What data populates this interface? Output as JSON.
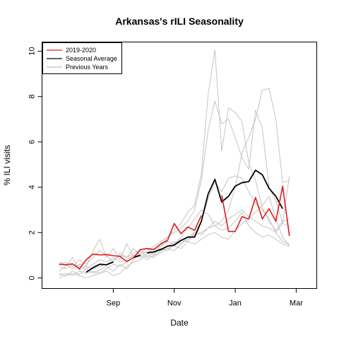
{
  "chart_data": {
    "type": "line",
    "title": "Arkansas's rILI Seasonality",
    "xlabel": "Date",
    "ylabel": "% ILI visits",
    "ylim": [
      0,
      10
    ],
    "yticks": [
      "0",
      "2",
      "4",
      "6",
      "8",
      "10"
    ],
    "xticks": [
      {
        "label": "Sep",
        "week": 10
      },
      {
        "label": "Nov",
        "week": 19
      },
      {
        "label": "Jan",
        "week": 28
      },
      {
        "label": "Mar",
        "week": 37
      }
    ],
    "xlim": [
      1,
      38
    ],
    "legend": {
      "position": "top-left",
      "entries": [
        "2019-2020",
        "Seasonal Average",
        "Previous Years"
      ]
    },
    "colors": {
      "current": "#e31a1c",
      "average": "#000000",
      "previous": "#bebebe"
    },
    "series": [
      {
        "name": "2019-2020",
        "role": "current",
        "points": [
          [
            2,
            0.6
          ],
          [
            3,
            0.58
          ],
          [
            4,
            0.62
          ],
          [
            5,
            0.4
          ],
          [
            6,
            0.8
          ],
          [
            7,
            1.05
          ],
          [
            8,
            1.02
          ],
          [
            9,
            1.03
          ],
          [
            10,
            0.98
          ],
          [
            11,
            0.95
          ],
          [
            12,
            0.72
          ],
          [
            13,
            0.9
          ],
          [
            14,
            1.25
          ],
          [
            15,
            1.3
          ],
          [
            16,
            1.25
          ],
          [
            17,
            1.5
          ],
          [
            18,
            1.65
          ],
          [
            19,
            2.4
          ],
          [
            20,
            1.95
          ],
          [
            21,
            2.25
          ],
          [
            22,
            2.1
          ],
          [
            23,
            2.75
          ],
          null,
          [
            26,
            3.65
          ],
          [
            27,
            2.05
          ],
          [
            28,
            2.05
          ],
          [
            29,
            2.7
          ],
          [
            30,
            2.6
          ],
          [
            31,
            3.55
          ],
          [
            32,
            2.6
          ],
          [
            33,
            3.05
          ],
          [
            34,
            2.5
          ],
          [
            35,
            4.05
          ],
          [
            36,
            1.85
          ]
        ]
      },
      {
        "name": "Seasonal Average",
        "role": "average",
        "points": [
          [
            6,
            0.25
          ],
          [
            7,
            0.45
          ],
          [
            8,
            0.6
          ],
          [
            9,
            0.58
          ],
          [
            10,
            0.7
          ],
          null,
          [
            13,
            0.9
          ],
          [
            14,
            1.0
          ],
          null,
          [
            15,
            1.1
          ],
          [
            16,
            1.15
          ],
          [
            17,
            1.25
          ],
          [
            18,
            1.4
          ],
          [
            19,
            1.45
          ],
          [
            20,
            1.65
          ],
          [
            21,
            1.8
          ],
          [
            22,
            1.8
          ],
          [
            23,
            2.5
          ],
          [
            24,
            3.7
          ],
          [
            25,
            4.35
          ],
          [
            26,
            3.35
          ],
          [
            27,
            3.6
          ],
          [
            28,
            4.05
          ],
          [
            29,
            4.2
          ],
          [
            30,
            4.25
          ],
          [
            31,
            4.75
          ],
          [
            32,
            4.55
          ],
          [
            33,
            3.95
          ],
          [
            34,
            3.6
          ],
          [
            35,
            3.05
          ]
        ]
      },
      {
        "role": "previous",
        "points": [
          [
            2,
            0.3
          ],
          [
            3,
            0.5
          ],
          [
            4,
            0.9
          ],
          [
            5,
            0.35
          ],
          [
            6,
            0.5
          ],
          [
            7,
            1.2
          ],
          [
            8,
            1.7
          ],
          [
            9,
            0.9
          ],
          [
            10,
            1.3
          ],
          [
            11,
            0.8
          ],
          [
            12,
            1.5
          ],
          [
            13,
            0.9
          ],
          [
            14,
            1.1
          ],
          [
            15,
            1.3
          ],
          [
            16,
            1.0
          ],
          [
            17,
            1.4
          ],
          [
            18,
            1.8
          ],
          [
            19,
            2.1
          ],
          [
            20,
            2.4
          ],
          [
            21,
            2.9
          ],
          [
            22,
            3.2
          ],
          [
            23,
            4.6
          ],
          [
            24,
            8.1
          ],
          [
            25,
            10.05
          ],
          [
            26,
            5.6
          ],
          [
            27,
            7.5
          ],
          [
            28,
            7.3
          ],
          [
            29,
            6.9
          ],
          [
            30,
            5.1
          ],
          [
            31,
            4.3
          ],
          [
            32,
            3.1
          ],
          [
            33,
            2.5
          ],
          [
            34,
            2.1
          ],
          [
            35,
            2.5
          ],
          [
            36,
            2.6
          ]
        ]
      },
      {
        "role": "previous",
        "points": [
          [
            2,
            0.6
          ],
          [
            3,
            0.7
          ],
          [
            4,
            0.5
          ],
          [
            5,
            0.8
          ],
          [
            6,
            0.6
          ],
          [
            7,
            0.9
          ],
          [
            8,
            1.2
          ],
          [
            9,
            1.0
          ],
          [
            10,
            0.7
          ],
          [
            11,
            1.1
          ],
          [
            12,
            0.9
          ],
          [
            13,
            1.3
          ],
          [
            14,
            1.0
          ],
          [
            15,
            1.2
          ],
          [
            16,
            1.4
          ],
          [
            17,
            1.6
          ],
          [
            18,
            1.8
          ],
          [
            19,
            2.0
          ],
          [
            20,
            2.2
          ],
          [
            21,
            2.5
          ],
          [
            22,
            3.0
          ],
          [
            23,
            4.3
          ],
          [
            24,
            6.5
          ],
          [
            25,
            7.8
          ],
          [
            26,
            6.8
          ],
          [
            27,
            7.0
          ],
          [
            28,
            6.2
          ],
          [
            29,
            5.3
          ],
          [
            30,
            4.8
          ],
          [
            31,
            7.4
          ],
          [
            32,
            6.6
          ],
          [
            33,
            4.0
          ],
          [
            34,
            3.4
          ],
          [
            35,
            2.4
          ],
          [
            36,
            4.5
          ]
        ]
      },
      {
        "role": "previous",
        "points": [
          [
            2,
            0.2
          ],
          [
            3,
            0.1
          ],
          [
            4,
            0.3
          ],
          [
            5,
            0.15
          ],
          [
            6,
            0.4
          ],
          [
            7,
            0.2
          ],
          [
            8,
            0.35
          ],
          [
            9,
            0.5
          ],
          [
            10,
            0.3
          ],
          [
            11,
            0.6
          ],
          [
            12,
            0.4
          ],
          [
            13,
            0.8
          ],
          [
            14,
            1.2
          ],
          [
            15,
            0.9
          ],
          [
            16,
            1.1
          ],
          [
            17,
            1.3
          ],
          [
            18,
            1.2
          ],
          [
            19,
            1.5
          ],
          [
            20,
            1.7
          ],
          [
            21,
            1.6
          ],
          [
            22,
            2.0
          ],
          [
            23,
            1.9
          ],
          [
            24,
            2.2
          ],
          [
            25,
            2.3
          ],
          [
            26,
            2.5
          ],
          [
            27,
            3.0
          ],
          [
            28,
            4.0
          ],
          [
            29,
            5.5
          ],
          [
            30,
            6.2
          ],
          [
            31,
            7.0
          ],
          [
            32,
            8.3
          ],
          [
            33,
            8.35
          ],
          [
            34,
            7.0
          ],
          [
            35,
            4.2
          ],
          [
            36,
            4.3
          ]
        ]
      },
      {
        "role": "previous",
        "points": [
          [
            2,
            0.1
          ],
          [
            3,
            0.2
          ],
          [
            4,
            0.1
          ],
          [
            5,
            0.3
          ],
          [
            6,
            0.2
          ],
          [
            7,
            0.3
          ],
          [
            8,
            0.2
          ],
          [
            9,
            0.4
          ],
          [
            10,
            0.6
          ],
          [
            11,
            0.5
          ],
          [
            12,
            0.7
          ],
          [
            13,
            0.9
          ],
          [
            14,
            1.0
          ],
          [
            15,
            0.8
          ],
          [
            16,
            1.0
          ],
          [
            17,
            1.1
          ],
          [
            18,
            1.3
          ],
          [
            19,
            1.2
          ],
          [
            20,
            1.5
          ],
          [
            21,
            1.8
          ],
          [
            22,
            2.0
          ],
          [
            23,
            2.5
          ],
          [
            24,
            3.5
          ],
          [
            25,
            4.2
          ],
          [
            26,
            3.8
          ],
          [
            27,
            4.4
          ],
          [
            28,
            4.5
          ],
          [
            29,
            4.4
          ],
          [
            30,
            3.8
          ],
          [
            31,
            3.3
          ],
          [
            32,
            3.0
          ],
          [
            33,
            2.6
          ],
          [
            34,
            2.0
          ],
          [
            35,
            1.6
          ],
          [
            36,
            1.5
          ]
        ]
      },
      {
        "role": "previous",
        "points": [
          [
            2,
            0.0
          ],
          [
            3,
            0.1
          ],
          [
            4,
            0.2
          ],
          [
            5,
            0.1
          ],
          [
            6,
            0.0
          ],
          [
            7,
            0.1
          ],
          [
            8,
            0.2
          ],
          [
            9,
            0.3
          ],
          [
            10,
            0.1
          ],
          [
            11,
            0.2
          ],
          [
            12,
            0.5
          ],
          [
            13,
            0.7
          ],
          [
            14,
            0.8
          ],
          [
            15,
            1.0
          ],
          [
            16,
            0.9
          ],
          [
            17,
            1.2
          ],
          [
            18,
            1.3
          ],
          [
            19,
            1.4
          ],
          [
            20,
            1.3
          ],
          [
            21,
            1.6
          ],
          [
            22,
            1.5
          ],
          [
            23,
            1.7
          ],
          [
            24,
            1.9
          ],
          [
            25,
            2.0
          ],
          [
            26,
            1.8
          ],
          [
            27,
            1.7
          ],
          [
            28,
            2.1
          ],
          [
            29,
            2.4
          ],
          [
            30,
            2.6
          ],
          [
            31,
            2.9
          ],
          [
            32,
            3.2
          ],
          [
            33,
            3.6
          ],
          [
            34,
            2.6
          ],
          [
            35,
            1.8
          ],
          [
            36,
            1.4
          ]
        ]
      },
      {
        "role": "previous",
        "points": [
          [
            2,
            0.5
          ],
          [
            3,
            0.4
          ],
          [
            4,
            0.6
          ],
          [
            5,
            0.5
          ],
          [
            6,
            0.4
          ],
          [
            7,
            0.6
          ],
          [
            8,
            0.8
          ],
          [
            9,
            0.7
          ],
          [
            10,
            0.9
          ],
          [
            11,
            0.7
          ],
          [
            12,
            0.8
          ],
          [
            13,
            1.0
          ],
          [
            14,
            0.9
          ],
          [
            15,
            1.1
          ],
          [
            16,
            1.3
          ],
          [
            17,
            1.2
          ],
          [
            18,
            1.4
          ],
          [
            19,
            1.6
          ],
          [
            20,
            1.5
          ],
          [
            21,
            1.7
          ],
          [
            22,
            1.9
          ],
          [
            23,
            2.0
          ],
          [
            24,
            2.2
          ],
          [
            25,
            2.5
          ],
          [
            26,
            2.3
          ],
          [
            27,
            2.6
          ],
          [
            28,
            2.8
          ],
          [
            29,
            3.0
          ],
          [
            30,
            2.7
          ],
          [
            31,
            2.5
          ],
          [
            32,
            2.3
          ],
          [
            33,
            2.2
          ],
          [
            34,
            2.0
          ],
          [
            35,
            2.4
          ],
          [
            36,
            2.3
          ]
        ]
      },
      {
        "role": "previous",
        "points": [
          [
            2,
            0.7
          ],
          [
            3,
            0.6
          ],
          [
            4,
            0.4
          ],
          [
            5,
            0.6
          ],
          [
            6,
            0.5
          ],
          [
            7,
            0.4
          ],
          [
            8,
            0.5
          ],
          [
            9,
            0.6
          ],
          [
            10,
            0.8
          ],
          [
            11,
            1.0
          ],
          [
            12,
            0.9
          ],
          [
            13,
            1.1
          ],
          [
            14,
            1.2
          ],
          [
            15,
            1.1
          ],
          [
            16,
            1.3
          ],
          [
            17,
            1.4
          ],
          [
            18,
            1.6
          ],
          [
            19,
            1.5
          ],
          [
            20,
            1.8
          ],
          [
            21,
            2.2
          ],
          [
            22,
            2.6
          ],
          [
            23,
            3.0
          ],
          [
            24,
            2.8
          ],
          [
            25,
            2.3
          ],
          [
            26,
            2.1
          ],
          [
            27,
            2.2
          ],
          [
            28,
            2.5
          ],
          [
            29,
            2.9
          ],
          [
            30,
            2.3
          ],
          [
            31,
            2.0
          ],
          [
            32,
            1.8
          ],
          [
            33,
            1.9
          ],
          [
            34,
            1.7
          ],
          [
            35,
            1.5
          ],
          [
            36,
            1.4
          ]
        ]
      }
    ]
  }
}
